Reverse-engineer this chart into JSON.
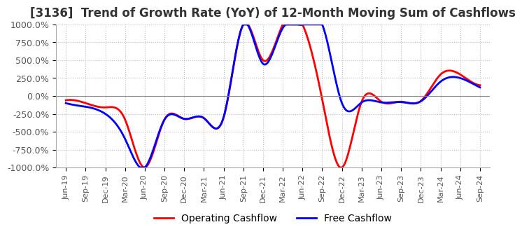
{
  "title": "[3136]  Trend of Growth Rate (YoY) of 12-Month Moving Sum of Cashflows",
  "title_fontsize": 12,
  "ylim": [
    -1000,
    1000
  ],
  "yticks": [
    -1000,
    -750,
    -500,
    -250,
    0,
    250,
    500,
    750,
    1000
  ],
  "ytick_labels": [
    "-1000.0%",
    "-750.0%",
    "-500.0%",
    "-250.0%",
    "0.0%",
    "250.0%",
    "500.0%",
    "750.0%",
    "1000.0%"
  ],
  "background_color": "#ffffff",
  "plot_bg_color": "#ffffff",
  "grid_color": "#bbbbbb",
  "operating_color": "#ff0000",
  "free_color": "#0000ff",
  "legend_labels": [
    "Operating Cashflow",
    "Free Cashflow"
  ],
  "x_dates": [
    "Jun-19",
    "Sep-19",
    "Dec-19",
    "Mar-20",
    "Jun-20",
    "Sep-20",
    "Dec-20",
    "Mar-21",
    "Jun-21",
    "Sep-21",
    "Dec-21",
    "Mar-22",
    "Jun-22",
    "Sep-22",
    "Dec-22",
    "Mar-23",
    "Jun-23",
    "Sep-23",
    "Dec-23",
    "Mar-24",
    "Jun-24",
    "Sep-24"
  ],
  "operating_cf": [
    -60,
    -100,
    -160,
    -330,
    -1000,
    -330,
    -320,
    -310,
    -300,
    1000,
    500,
    1000,
    1000,
    -50,
    -1000,
    -80,
    -80,
    -80,
    -70,
    300,
    300,
    150
  ],
  "free_cf": [
    -100,
    -150,
    -250,
    -600,
    -1000,
    -330,
    -320,
    -310,
    -295,
    1000,
    450,
    950,
    1000,
    1000,
    -100,
    -90,
    -90,
    -85,
    -75,
    200,
    250,
    120
  ]
}
